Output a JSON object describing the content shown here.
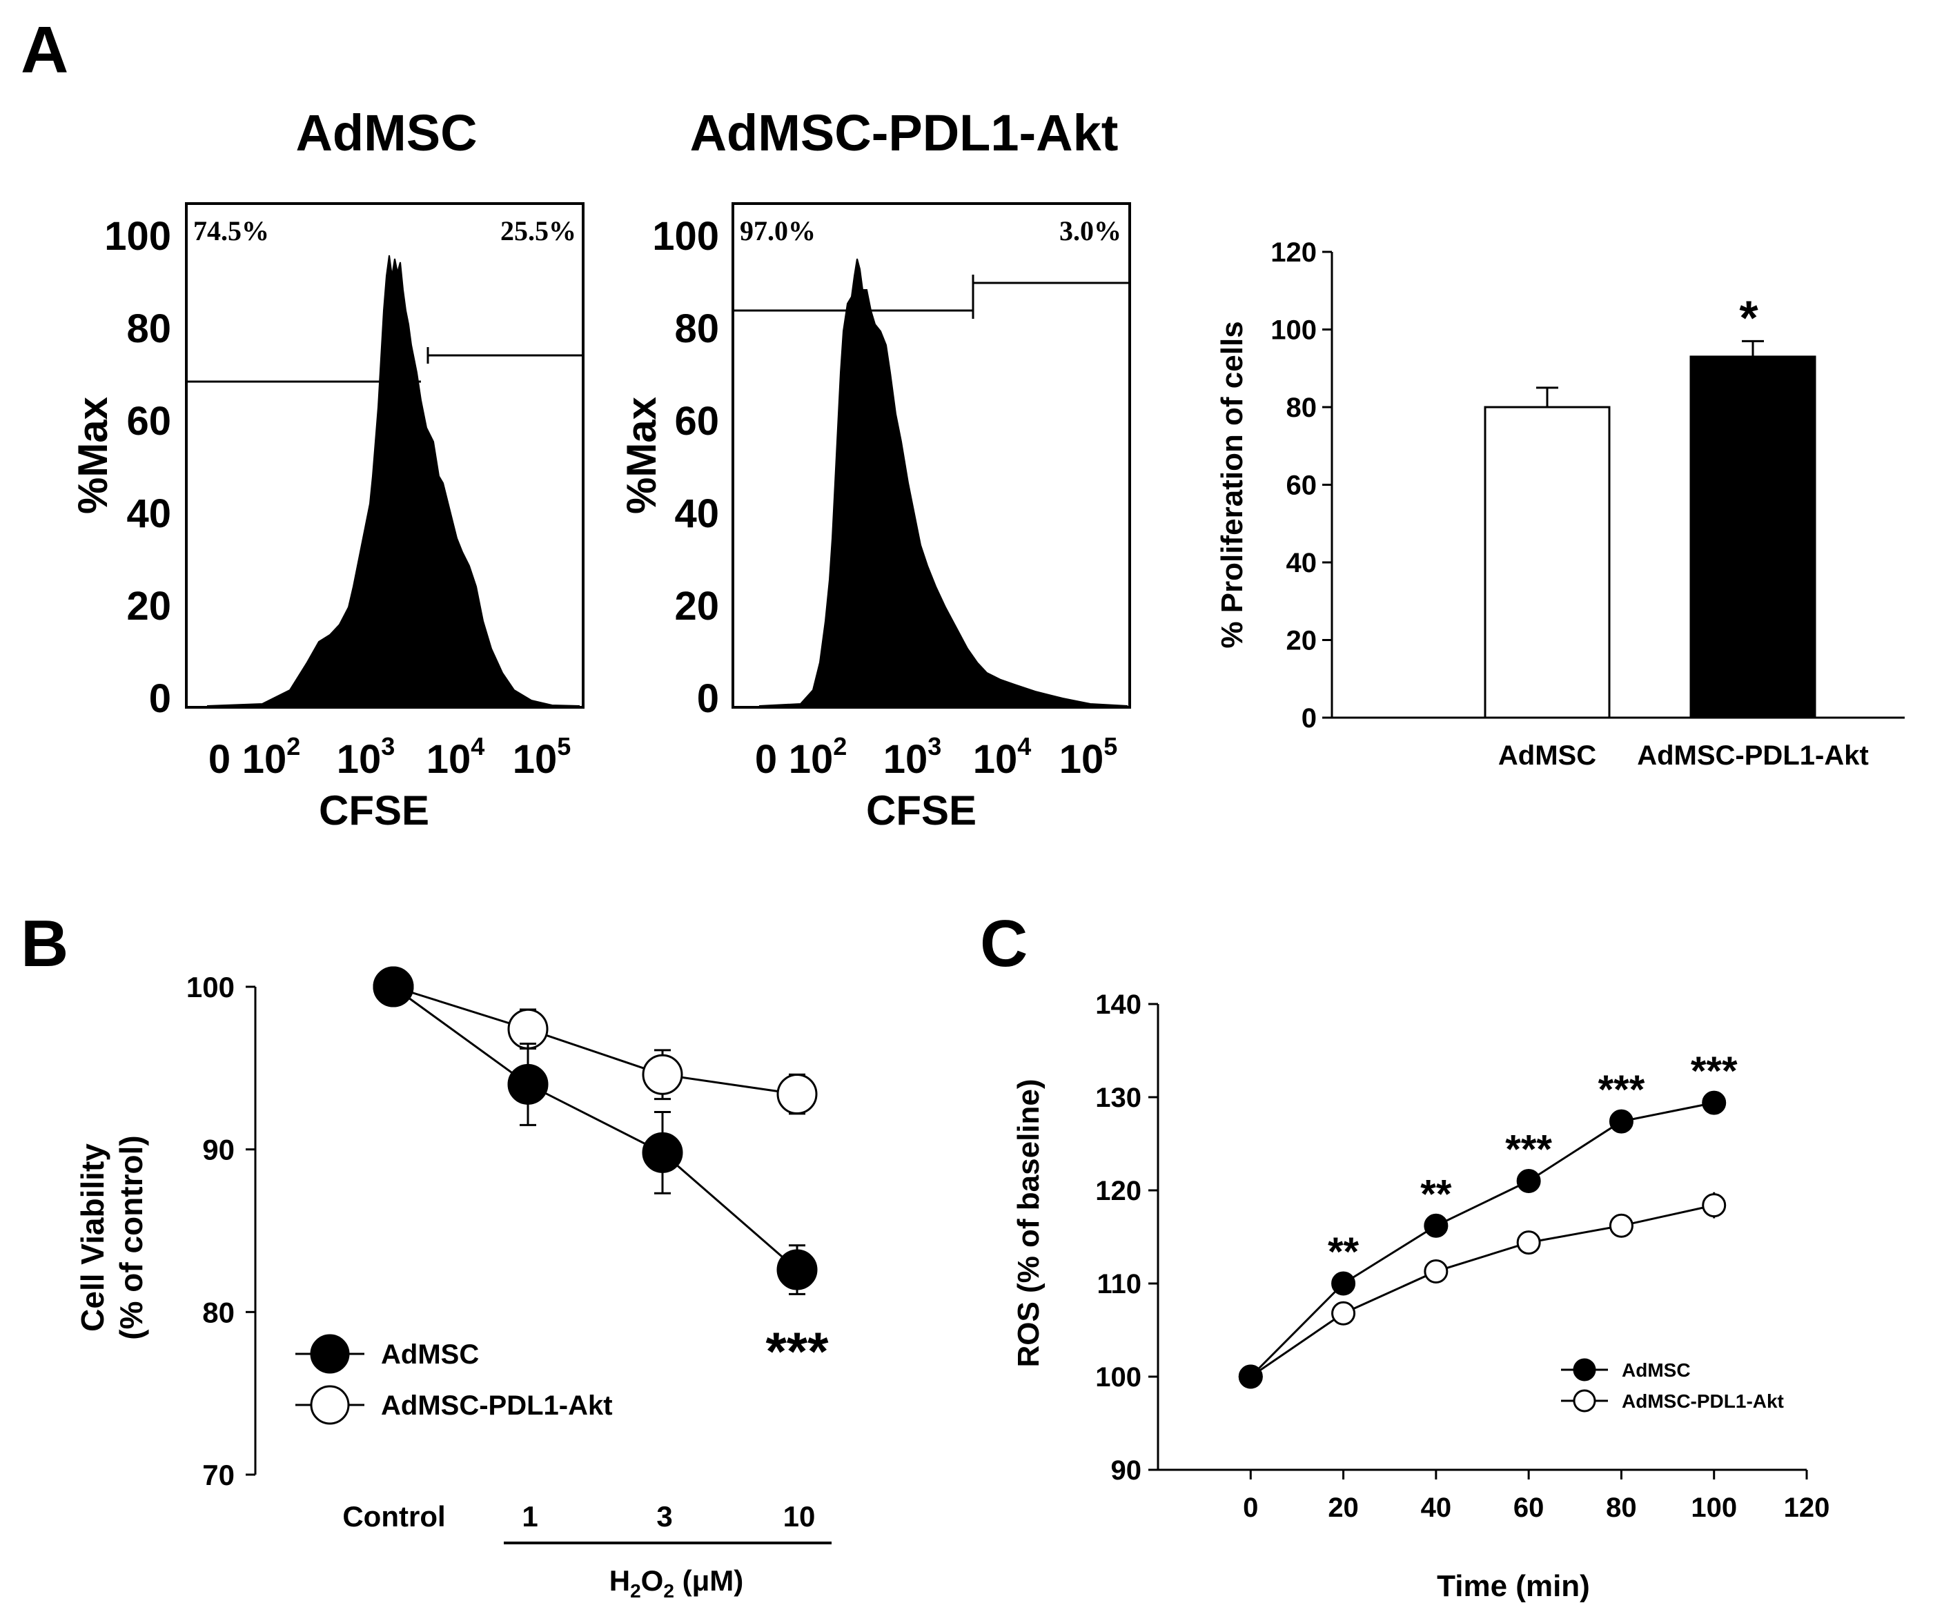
{
  "panels": {
    "a": "A",
    "b": "B",
    "c": "C"
  },
  "hist_panels": [
    {
      "title": "AdMSC",
      "y_ticks": [
        "100",
        "80",
        "60",
        "40",
        "20",
        "0"
      ],
      "ylabel": "%Max",
      "xlabel": "CFSE",
      "x_ticks": [
        {
          "base": "0",
          "exp": ""
        },
        {
          "base": "10",
          "exp": "2"
        },
        {
          "base": "10",
          "exp": "3"
        },
        {
          "base": "10",
          "exp": "4"
        },
        {
          "base": "10",
          "exp": "5"
        }
      ],
      "gate_left": "74.5%",
      "gate_right": "25.5%"
    },
    {
      "title": "AdMSC-PDL1-Akt",
      "y_ticks": [
        "100",
        "80",
        "60",
        "40",
        "20",
        "0"
      ],
      "ylabel": "%Max",
      "xlabel": "CFSE",
      "x_ticks": [
        {
          "base": "0",
          "exp": ""
        },
        {
          "base": "10",
          "exp": "2"
        },
        {
          "base": "10",
          "exp": "3"
        },
        {
          "base": "10",
          "exp": "4"
        },
        {
          "base": "10",
          "exp": "5"
        }
      ],
      "gate_left": "97.0%",
      "gate_right": "3.0%"
    }
  ],
  "chart_data": [
    {
      "panel": "A",
      "type": "bar",
      "ylabel": "% Proliferation of cells",
      "categories": [
        "AdMSC",
        "AdMSC-PDL1-Akt"
      ],
      "values": [
        80,
        93
      ],
      "errors": [
        5,
        4
      ],
      "fills": [
        "#ffffff",
        "#000000"
      ],
      "annotations": [
        "",
        "*"
      ],
      "ylim": [
        0,
        120
      ],
      "yticks": [
        0,
        20,
        40,
        60,
        80,
        100,
        120
      ]
    },
    {
      "panel": "B",
      "type": "line",
      "ylabel_lines": [
        "Cell Viability",
        "(% of control)"
      ],
      "categories": [
        "Control",
        "1",
        "3",
        "10"
      ],
      "xgroup_label": {
        "prefix": "H",
        "sub1": "2",
        "mid": "O",
        "sub2": "2",
        "suffix": " (μM)"
      },
      "ylim": [
        70,
        100
      ],
      "yticks": [
        70,
        80,
        90,
        100
      ],
      "series": [
        {
          "name": "AdMSC",
          "marker": "filled",
          "values": [
            100,
            94,
            89.8,
            82.6
          ],
          "errors": [
            0,
            2.5,
            2.5,
            1.5
          ]
        },
        {
          "name": "AdMSC-PDL1-Akt",
          "marker": "open",
          "values": [
            100,
            97.4,
            94.6,
            93.4
          ],
          "errors": [
            0,
            1.2,
            1.5,
            1.2
          ]
        }
      ],
      "annotations": [
        {
          "category": "10",
          "text": "***"
        }
      ]
    },
    {
      "panel": "C",
      "type": "line",
      "ylabel": "ROS (% of baseline)",
      "xlabel": "Time (min)",
      "xlim": [
        -20,
        120
      ],
      "xticks": [
        0,
        20,
        40,
        60,
        80,
        100,
        120
      ],
      "ylim": [
        90,
        140
      ],
      "yticks": [
        90,
        100,
        110,
        120,
        130,
        140
      ],
      "series": [
        {
          "name": "AdMSC",
          "marker": "filled",
          "x": [
            0,
            20,
            40,
            60,
            80,
            100
          ],
          "values": [
            100,
            110,
            116.2,
            121,
            127.4,
            129.4
          ],
          "errors": [
            0,
            0.6,
            0.6,
            0.6,
            0.6,
            0.6
          ]
        },
        {
          "name": "AdMSC-PDL1-Akt",
          "marker": "open",
          "x": [
            0,
            20,
            40,
            60,
            80,
            100
          ],
          "values": [
            100,
            106.8,
            111.3,
            114.4,
            116.2,
            118.4
          ],
          "errors": [
            0,
            0.6,
            0.6,
            1.2,
            1.2,
            1.4
          ]
        }
      ],
      "annotations": [
        {
          "x": 20,
          "text": "**"
        },
        {
          "x": 40,
          "text": "**"
        },
        {
          "x": 60,
          "text": "***"
        },
        {
          "x": 80,
          "text": "***"
        },
        {
          "x": 100,
          "text": "***"
        }
      ]
    }
  ]
}
